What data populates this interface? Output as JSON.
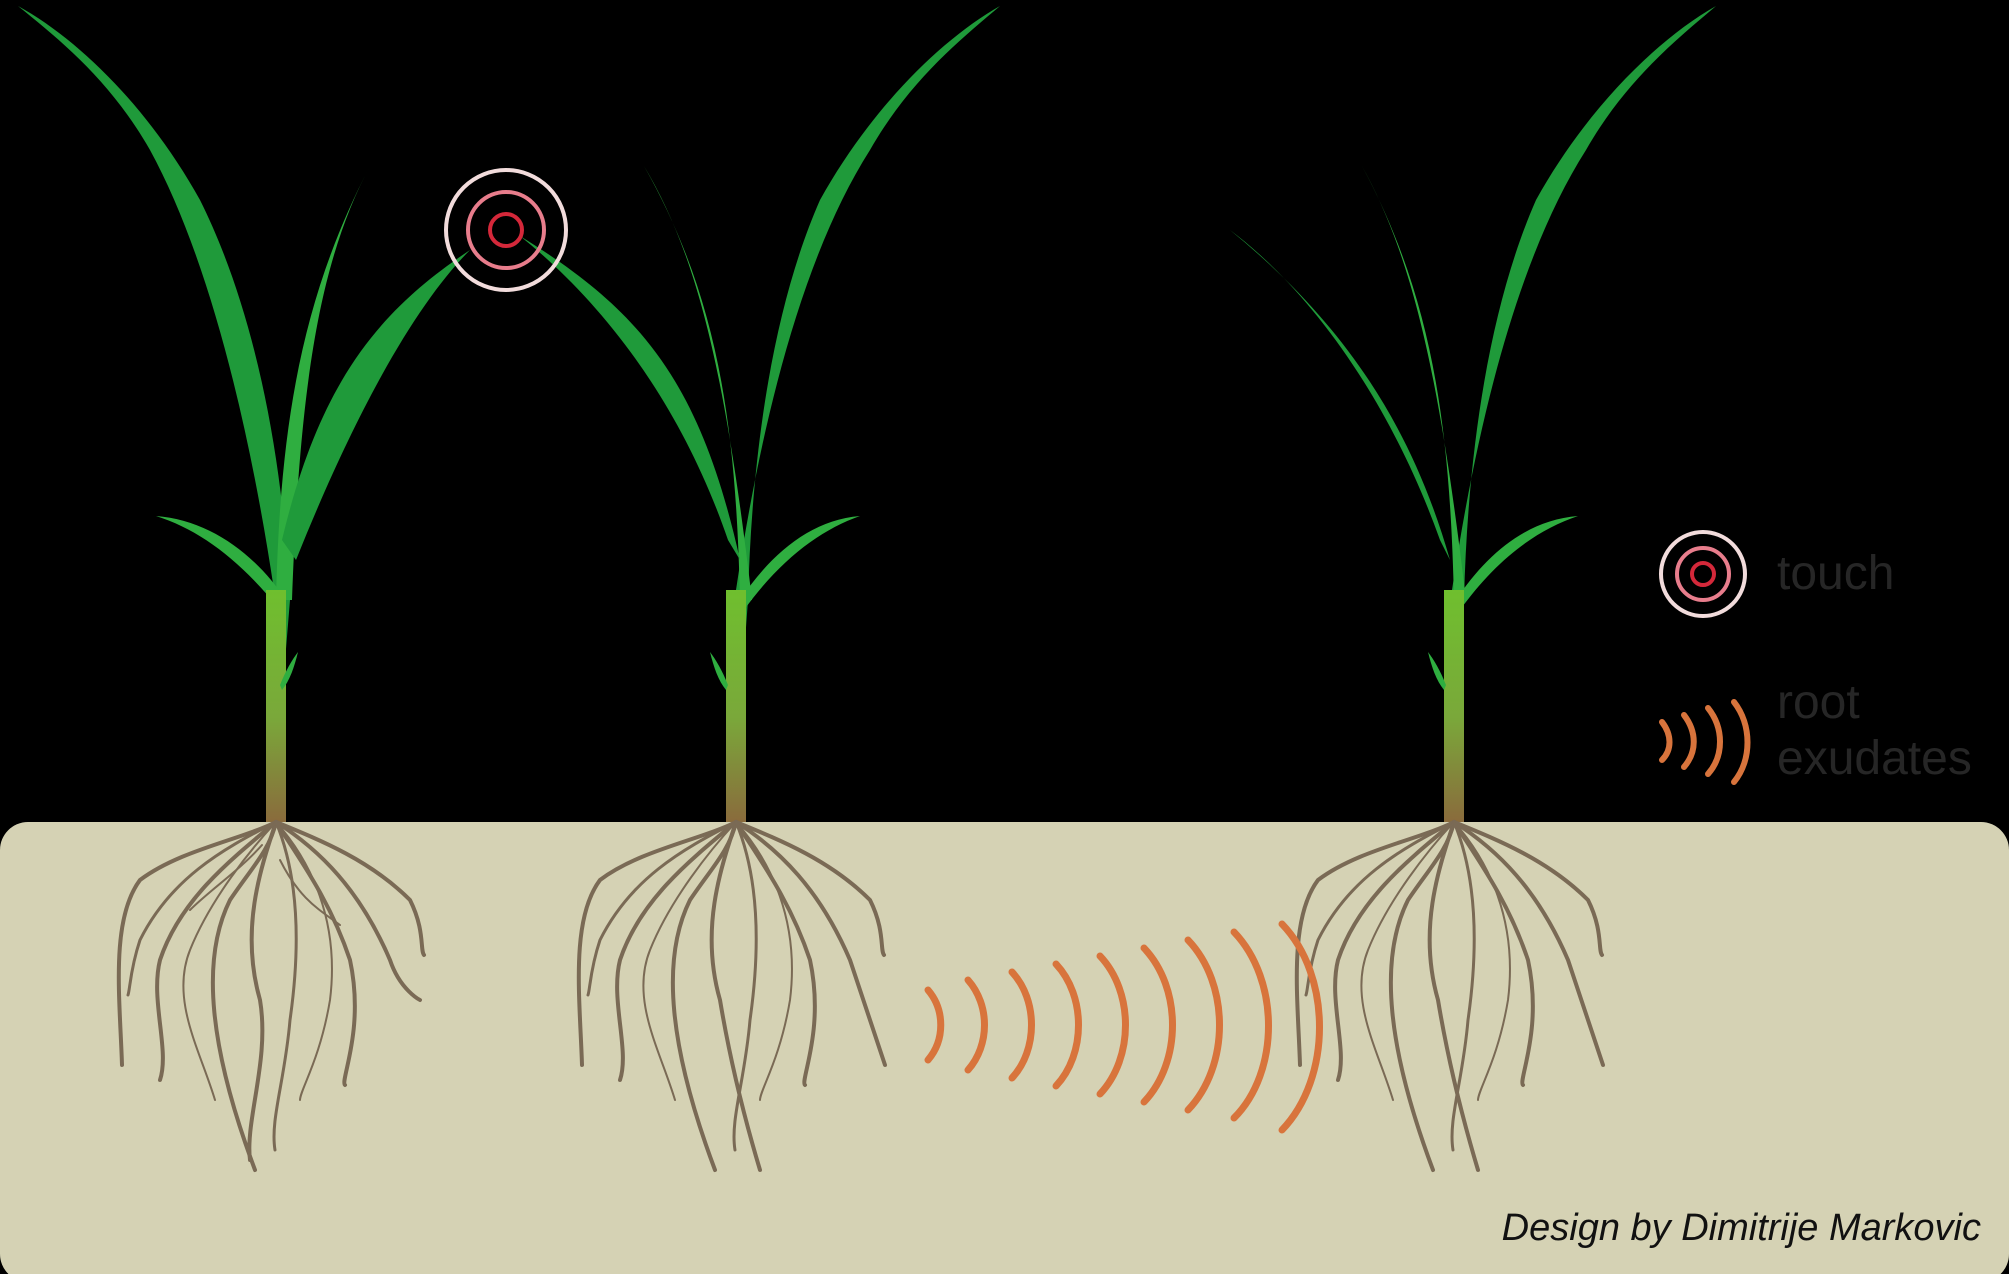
{
  "legend": {
    "touch_label": "touch",
    "root_label_line1": "root",
    "root_label_line2": "exudates"
  },
  "credit": "Design by Dimitrije Markovic",
  "colors": {
    "background": "#000000",
    "soil": "#d5d2b4",
    "leaf": "#1f9a3a",
    "leaf_light": "#3fbf4a",
    "stem": "#7db33a",
    "stem_base": "#8a6b3c",
    "root": "#7a6a55",
    "exudate": "#d8743c",
    "touch_outer": "#f2dcdc",
    "touch_mid": "#e87d8c",
    "touch_inner": "#d4283a"
  },
  "icons": {
    "touch": "concentric-circles-icon",
    "root_exudates": "wave-arcs-icon"
  }
}
